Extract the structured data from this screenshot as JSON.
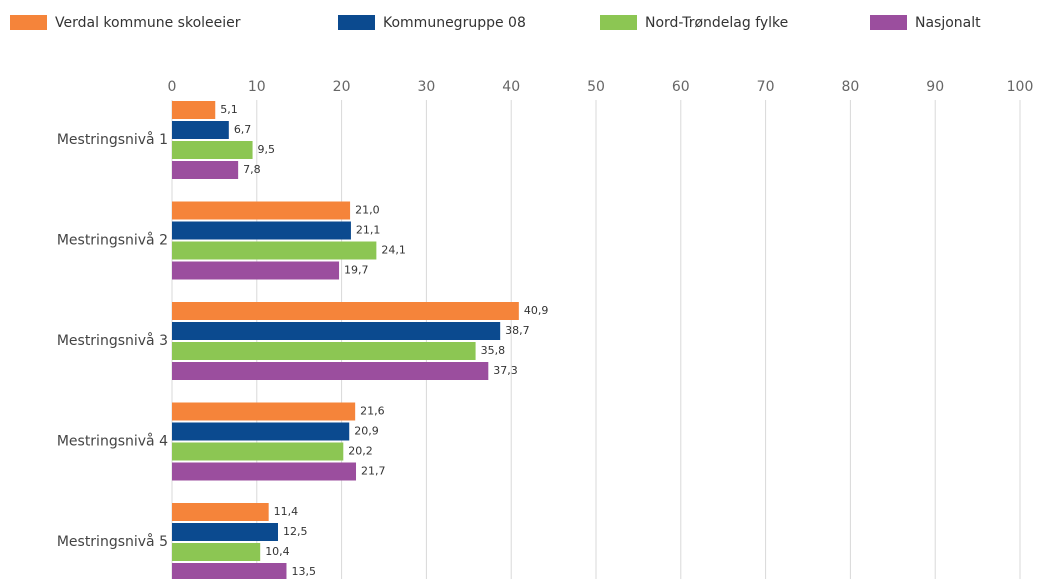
{
  "chart_data": {
    "type": "hbar",
    "categories": [
      "Mestringsnivå 1",
      "Mestringsnivå 2",
      "Mestringsnivå 3",
      "Mestringsnivå 4",
      "Mestringsnivå 5"
    ],
    "series": [
      {
        "name": "Verdal kommune skoleeier",
        "color": "#f5843a",
        "values": [
          5.1,
          21.0,
          40.9,
          21.6,
          11.4
        ],
        "value_labels": [
          "5,1",
          "21,0",
          "40,9",
          "21,6",
          "11,4"
        ]
      },
      {
        "name": "Kommunegruppe 08",
        "color": "#0b4a8f",
        "values": [
          6.7,
          21.1,
          38.7,
          20.9,
          12.5
        ],
        "value_labels": [
          "6,7",
          "21,1",
          "38,7",
          "20,9",
          "12,5"
        ]
      },
      {
        "name": "Nord-Trøndelag fylke",
        "color": "#8cc653",
        "values": [
          9.5,
          24.1,
          35.8,
          20.2,
          10.4
        ],
        "value_labels": [
          "9,5",
          "24,1",
          "35,8",
          "20,2",
          "10,4"
        ]
      },
      {
        "name": "Nasjonalt",
        "color": "#9b4e9e",
        "values": [
          7.8,
          19.7,
          37.3,
          21.7,
          13.5
        ],
        "value_labels": [
          "7,8",
          "19,7",
          "37,3",
          "21,7",
          "13,5"
        ]
      }
    ],
    "xlim": [
      0,
      100
    ],
    "xticks": [
      0,
      10,
      20,
      30,
      40,
      50,
      60,
      70,
      80,
      90,
      100
    ],
    "grid": true,
    "legend": "top"
  }
}
